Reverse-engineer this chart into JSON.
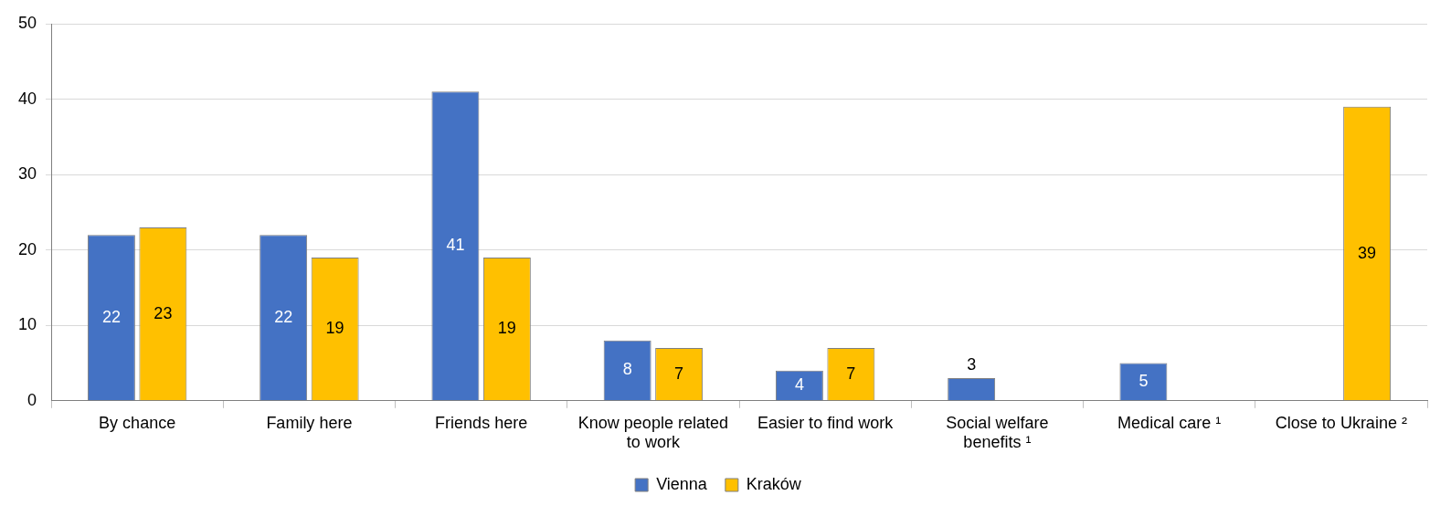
{
  "chart_data": {
    "type": "bar",
    "categories": [
      "By chance",
      "Family here",
      "Friends here",
      "Know people related to work",
      "Easier to find work",
      "Social welfare benefits ¹",
      "Medical care ¹",
      "Close to Ukraine ²"
    ],
    "series": [
      {
        "name": "Vienna",
        "color": "#4472c4",
        "values": [
          22,
          22,
          41,
          8,
          4,
          3,
          5,
          null
        ]
      },
      {
        "name": "Kraków",
        "color": "#ffc000",
        "values": [
          23,
          19,
          19,
          7,
          7,
          null,
          null,
          39
        ]
      }
    ],
    "ylim": [
      0,
      50
    ],
    "yticks": [
      0,
      10,
      20,
      30,
      40,
      50
    ],
    "grid": "y",
    "legend": "bottom",
    "data_labels": true
  }
}
